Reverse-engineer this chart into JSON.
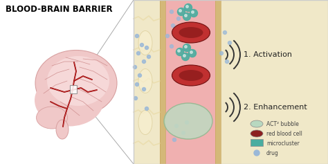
{
  "title": "BLOOD-BRAIN BARRIER",
  "title_fontsize": 8.5,
  "bg_color": "#ffffff",
  "legend_items": [
    {
      "label": "ACT² bubble",
      "color": "#b8d8c0",
      "shape": "ellipse"
    },
    {
      "label": "red blood cell",
      "color": "#8b2020",
      "shape": "ellipse"
    },
    {
      "label": "microcluster",
      "color": "#4aada0",
      "shape": "rect"
    },
    {
      "label": "drug",
      "color": "#9ab8d8",
      "shape": "dot"
    }
  ],
  "label1": "1. Activation",
  "label2": "2. Enhancement",
  "vessel_color": "#f0b0b0",
  "vessel_wall_color": "#e08080",
  "tissue_color": "#f0e8c8",
  "tissue_border": "#d8c898",
  "rbc_color": "#c03030",
  "rbc_dark": "#701010",
  "bubble_color": "#c0d8c0",
  "bubble_border": "#90b890",
  "cluster_color": "#4aada0",
  "drug_color": "#9ab8d8",
  "brain_pink": "#f0c8c8",
  "brain_light": "#fce8e8",
  "brain_red": "#c03030",
  "brain_dark_red": "#900000",
  "zoom_line_color": "#aaaaaa",
  "border_color": "#cccccc",
  "wave_color": "#333333",
  "label_color": "#222222"
}
